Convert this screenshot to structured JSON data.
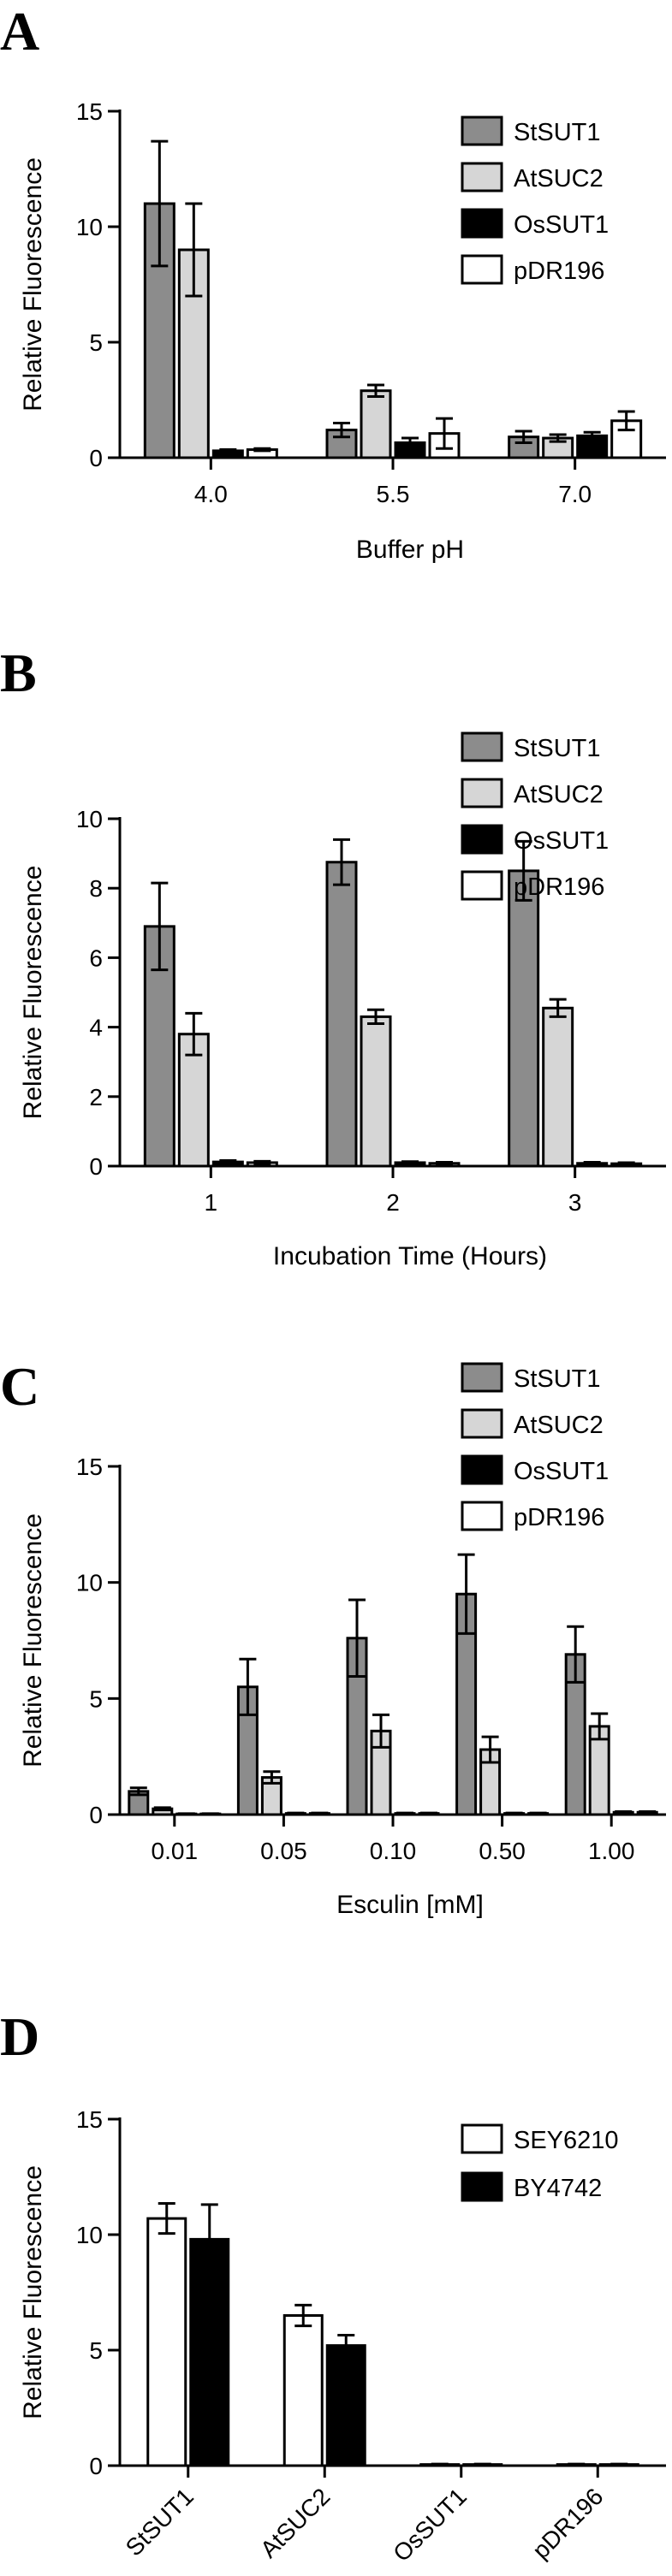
{
  "colors": {
    "StSUT1": "#8c8c8c",
    "AtSUC2": "#d6d6d6",
    "OsSUT1": "#000000",
    "pDR196": "#ffffff",
    "SEY6210": "#ffffff",
    "BY4742": "#000000",
    "stroke": "#000000"
  },
  "chart_data": [
    {
      "panel": "A",
      "type": "bar",
      "xlabel": "Buffer pH",
      "ylabel": "Relative Fluorescence",
      "ylim": [
        0,
        15
      ],
      "yticks": [
        0,
        5,
        10,
        15
      ],
      "categories": [
        "4.0",
        "5.5",
        "7.0"
      ],
      "legend_position": "top-right",
      "series": [
        {
          "name": "StSUT1",
          "values": [
            11.0,
            1.2,
            0.9
          ],
          "errors": [
            2.7,
            0.3,
            0.25
          ]
        },
        {
          "name": "AtSUC2",
          "values": [
            9.0,
            2.9,
            0.85
          ],
          "errors": [
            2.0,
            0.25,
            0.15
          ]
        },
        {
          "name": "OsSUT1",
          "values": [
            0.3,
            0.65,
            0.95
          ],
          "errors": [
            0.05,
            0.2,
            0.15
          ]
        },
        {
          "name": "pDR196",
          "values": [
            0.35,
            1.05,
            1.6
          ],
          "errors": [
            0.05,
            0.65,
            0.4
          ]
        }
      ]
    },
    {
      "panel": "B",
      "type": "bar",
      "xlabel": "Incubation Time (Hours)",
      "ylabel": "Relative Fluorescence",
      "ylim": [
        0,
        10
      ],
      "yticks": [
        0,
        2,
        4,
        6,
        8,
        10
      ],
      "categories": [
        "1",
        "2",
        "3"
      ],
      "legend_position": "top-right",
      "series": [
        {
          "name": "StSUT1",
          "values": [
            6.9,
            8.75,
            8.5
          ],
          "errors": [
            1.25,
            0.65,
            0.85
          ]
        },
        {
          "name": "AtSUC2",
          "values": [
            3.8,
            4.3,
            4.55
          ],
          "errors": [
            0.6,
            0.2,
            0.25
          ]
        },
        {
          "name": "OsSUT1",
          "values": [
            0.12,
            0.1,
            0.08
          ],
          "errors": [
            0.04,
            0.03,
            0.03
          ]
        },
        {
          "name": "pDR196",
          "values": [
            0.1,
            0.08,
            0.07
          ],
          "errors": [
            0.04,
            0.03,
            0.03
          ]
        }
      ]
    },
    {
      "panel": "C",
      "type": "bar",
      "xlabel": "Esculin [mM]",
      "ylabel": "Relative Fluorescence",
      "ylim": [
        0,
        15
      ],
      "yticks": [
        0,
        5,
        10,
        15
      ],
      "categories": [
        "0.01",
        "0.05",
        "0.10",
        "0.50",
        "1.00"
      ],
      "legend_position": "top-right",
      "series": [
        {
          "name": "StSUT1",
          "values": [
            1.0,
            5.5,
            7.6,
            9.5,
            6.9
          ],
          "errors": [
            0.15,
            1.2,
            1.65,
            1.7,
            1.2
          ]
        },
        {
          "name": "AtSUC2",
          "values": [
            0.25,
            1.6,
            3.6,
            2.8,
            3.8
          ],
          "errors": [
            0.05,
            0.25,
            0.7,
            0.55,
            0.55
          ]
        },
        {
          "name": "OsSUT1",
          "values": [
            0.03,
            0.05,
            0.05,
            0.05,
            0.1
          ],
          "errors": [
            0.01,
            0.02,
            0.02,
            0.02,
            0.03
          ]
        },
        {
          "name": "pDR196",
          "values": [
            0.03,
            0.05,
            0.05,
            0.05,
            0.1
          ],
          "errors": [
            0.01,
            0.02,
            0.02,
            0.02,
            0.03
          ]
        }
      ]
    },
    {
      "panel": "D",
      "type": "bar",
      "xlabel": "",
      "ylabel": "Relative Fluorescence",
      "ylim": [
        0,
        15
      ],
      "yticks": [
        0,
        5,
        10,
        15
      ],
      "categories": [
        "StSUT1",
        "AtSUC2",
        "OsSUT1",
        "pDR196"
      ],
      "rotated_category_labels": true,
      "legend_position": "top-right",
      "series": [
        {
          "name": "SEY6210",
          "values": [
            10.7,
            6.5,
            0.05,
            0.05
          ],
          "errors": [
            0.65,
            0.45,
            0.02,
            0.02
          ]
        },
        {
          "name": "BY4742",
          "values": [
            9.8,
            5.2,
            0.05,
            0.05
          ],
          "errors": [
            1.5,
            0.45,
            0.02,
            0.02
          ]
        }
      ]
    }
  ]
}
